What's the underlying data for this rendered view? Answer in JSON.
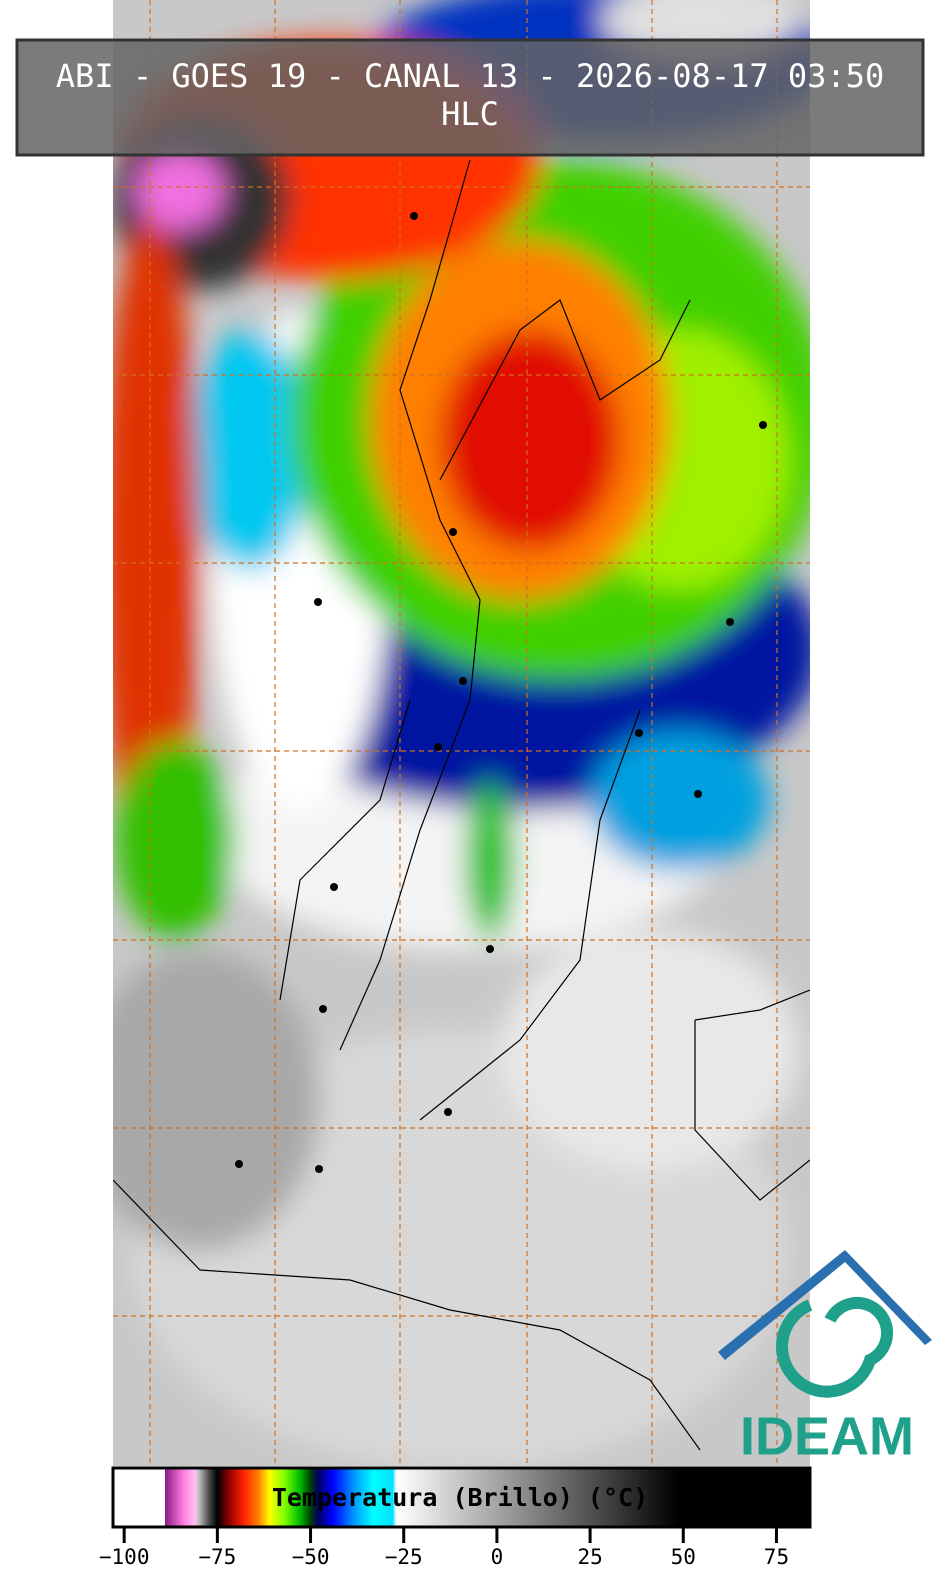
{
  "header": {
    "title": "ABI - GOES 19 - CANAL 13 - 2026-08-17 03:50",
    "subtitle": "HLC"
  },
  "colorbar": {
    "label": "Temperatura (Brillo) (°C)",
    "xlim": [
      -103,
      84
    ],
    "ticks": [
      {
        "value": -100,
        "label": "−100"
      },
      {
        "value": -75,
        "label": "−75"
      },
      {
        "value": -50,
        "label": "−50"
      },
      {
        "value": -25,
        "label": "−25"
      },
      0,
      25,
      50,
      75
    ],
    "colorscale": [
      [
        -103,
        "#ffffff"
      ],
      [
        -89,
        "#ffffff"
      ],
      [
        -89,
        "#8b1a8b"
      ],
      [
        -84,
        "#ff80e0"
      ],
      [
        -81,
        "#ffc0f0"
      ],
      [
        -80,
        "#c0c0c0"
      ],
      [
        -77,
        "#404040"
      ],
      [
        -75,
        "#000000"
      ],
      [
        -72,
        "#8b0000"
      ],
      [
        -68,
        "#ff2000"
      ],
      [
        -64,
        "#ff8000"
      ],
      [
        -61,
        "#ffff00"
      ],
      [
        -57,
        "#80ff00"
      ],
      [
        -53,
        "#00c000"
      ],
      [
        -50,
        "#004000"
      ],
      [
        -48,
        "#000060"
      ],
      [
        -44,
        "#0000ff"
      ],
      [
        -38,
        "#00a0ff"
      ],
      [
        -33,
        "#00ffff"
      ],
      [
        -28,
        "#00e0ff"
      ],
      [
        -27,
        "#ffffff"
      ],
      [
        49,
        "#000000"
      ],
      [
        84,
        "#000000"
      ]
    ]
  },
  "logo": {
    "text": "IDEAM"
  }
}
